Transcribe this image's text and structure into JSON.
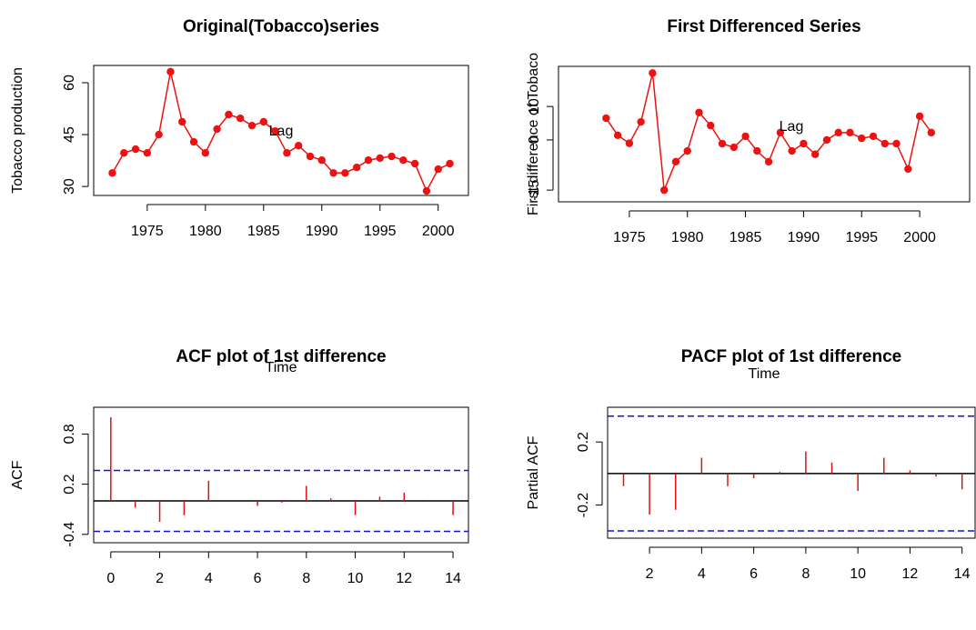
{
  "chart_data": [
    {
      "type": "line",
      "title": "Original(Tobacco)series",
      "xlabel": "Time",
      "ylabel": "Tobacco production",
      "color": "#ee1111",
      "x": [
        1972,
        1973,
        1974,
        1975,
        1976,
        1977,
        1978,
        1979,
        1980,
        1981,
        1982,
        1983,
        1984,
        1985,
        1986,
        1987,
        1988,
        1989,
        1990,
        1991,
        1992,
        1993,
        1994,
        1995,
        1996,
        1997,
        1998,
        1999,
        2000,
        2001
      ],
      "values": [
        33.9,
        39.7,
        40.8,
        39.7,
        45,
        63.2,
        48.7,
        42.9,
        39.7,
        46.6,
        50.8,
        49.7,
        47.6,
        48.7,
        46,
        39.7,
        41.8,
        38.7,
        37.6,
        33.9,
        33.9,
        35.5,
        37.6,
        38.2,
        38.7,
        37.6,
        36.6,
        28.7,
        35,
        36.6
      ],
      "xlim": [
        1970.4,
        2002.6
      ],
      "ylim": [
        27.4,
        65
      ],
      "xticks": [
        1975,
        1980,
        1985,
        1990,
        1995,
        2000
      ],
      "yticks": [
        30,
        45,
        60
      ]
    },
    {
      "type": "line",
      "title": "First Differenced Series",
      "xlabel": "Time",
      "ylabel": "First difference of Tobaco",
      "color": "#ee1111",
      "x": [
        1973,
        1974,
        1975,
        1976,
        1977,
        1978,
        1979,
        1980,
        1981,
        1982,
        1983,
        1984,
        1985,
        1986,
        1987,
        1988,
        1989,
        1990,
        1991,
        1992,
        1993,
        1994,
        1995,
        1996,
        1997,
        1998,
        1999,
        2000,
        2001
      ],
      "values": [
        6.5,
        1.4,
        -1,
        5.4,
        20,
        -15,
        -6.5,
        -3.3,
        8.2,
        4.3,
        -1.1,
        -2.2,
        1.1,
        -3.3,
        -6.5,
        2.2,
        -3.3,
        -1.1,
        -4.3,
        0,
        2.2,
        2.2,
        0.5,
        1.1,
        -1.1,
        -1.1,
        -8.7,
        7.1,
        2.2
      ],
      "xlim": [
        1968.9,
        2004.3
      ],
      "ylim": [
        -18.5,
        22
      ],
      "xticks": [
        1975,
        1980,
        1985,
        1990,
        1995,
        2000
      ],
      "yticks": [
        -15,
        0,
        10
      ]
    },
    {
      "type": "stem",
      "title": "ACF plot of 1st difference",
      "xlabel": "Lag",
      "ylabel": "ACF",
      "color": "#dd1111",
      "ci_color": "#1111dd",
      "x": [
        0,
        1,
        2,
        3,
        4,
        5,
        6,
        7,
        8,
        9,
        10,
        11,
        12,
        13,
        14
      ],
      "values": [
        1,
        -0.08,
        -0.25,
        -0.17,
        0.24,
        0,
        -0.06,
        -0.02,
        0.18,
        0.03,
        -0.17,
        0.05,
        0.1,
        0.01,
        -0.17
      ],
      "ci": [
        0.364,
        -0.364
      ],
      "xlim": [
        -0.7,
        14.63
      ],
      "ylim": [
        -0.5,
        1.12
      ],
      "xticks": [
        0,
        2,
        4,
        6,
        8,
        10,
        12,
        14
      ],
      "yticks": [
        -0.4,
        0.2,
        0.8
      ]
    },
    {
      "type": "stem",
      "title": "PACF plot of 1st difference",
      "xlabel": "Lag",
      "ylabel": "Partial ACF",
      "color": "#dd1111",
      "ci_color": "#1111dd",
      "x": [
        1,
        2,
        3,
        4,
        5,
        6,
        7,
        8,
        9,
        10,
        11,
        12,
        13,
        14
      ],
      "values": [
        -0.08,
        -0.26,
        -0.23,
        0.1,
        -0.08,
        -0.03,
        0.01,
        0.14,
        0.07,
        -0.11,
        0.1,
        0.02,
        -0.02,
        -0.1
      ],
      "ci": [
        0.364,
        -0.364
      ],
      "xlim": [
        0.39,
        14.5
      ],
      "ylim": [
        -0.41,
        0.42
      ],
      "xticks": [
        2,
        4,
        6,
        8,
        10,
        12,
        14
      ],
      "yticks": [
        -0.2,
        0.2
      ]
    }
  ]
}
